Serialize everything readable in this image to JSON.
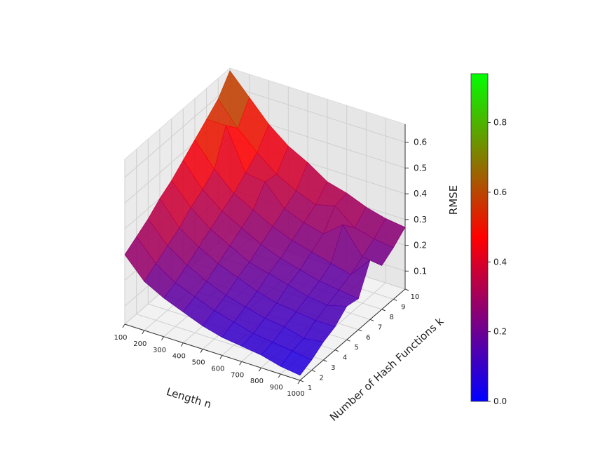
{
  "chart_data": {
    "type": "surface3d",
    "xlabel": "Length n",
    "ylabel": "Number of Hash Functions k",
    "zlabel": "RMSE",
    "x": [
      100,
      200,
      300,
      400,
      500,
      600,
      700,
      800,
      900,
      1000
    ],
    "y": [
      1,
      2,
      3,
      4,
      5,
      6,
      7,
      8,
      9,
      10
    ],
    "z": [
      [
        0.3,
        0.22,
        0.18,
        0.15,
        0.12,
        0.1,
        0.09,
        0.08,
        0.06,
        0.05
      ],
      [
        0.33,
        0.25,
        0.2,
        0.17,
        0.14,
        0.12,
        0.1,
        0.09,
        0.08,
        0.07
      ],
      [
        0.36,
        0.28,
        0.23,
        0.19,
        0.16,
        0.14,
        0.12,
        0.11,
        0.09,
        0.1
      ],
      [
        0.4,
        0.31,
        0.26,
        0.22,
        0.19,
        0.16,
        0.14,
        0.13,
        0.12,
        0.12
      ],
      [
        0.43,
        0.35,
        0.29,
        0.25,
        0.21,
        0.19,
        0.17,
        0.15,
        0.14,
        0.16
      ],
      [
        0.47,
        0.38,
        0.32,
        0.28,
        0.24,
        0.21,
        0.19,
        0.17,
        0.16,
        0.15
      ],
      [
        0.51,
        0.42,
        0.35,
        0.31,
        0.27,
        0.24,
        0.22,
        0.2,
        0.18,
        0.26
      ],
      [
        0.55,
        0.55,
        0.39,
        0.38,
        0.3,
        0.27,
        0.25,
        0.31,
        0.21,
        0.2
      ],
      [
        0.59,
        0.5,
        0.43,
        0.37,
        0.33,
        0.3,
        0.32,
        0.26,
        0.24,
        0.23
      ],
      [
        0.66,
        0.58,
        0.5,
        0.44,
        0.4,
        0.35,
        0.33,
        0.3,
        0.28,
        0.27
      ]
    ],
    "xlim": [
      100,
      1000
    ],
    "ylim": [
      1,
      10
    ],
    "zlim": [
      0.03,
      0.67
    ],
    "xticks": [
      100,
      200,
      300,
      400,
      500,
      600,
      700,
      800,
      900,
      1000
    ],
    "yticks": [
      1,
      2,
      3,
      4,
      5,
      6,
      7,
      8,
      9,
      10
    ],
    "zticks": [
      0.1,
      0.2,
      0.3,
      0.4,
      0.5,
      0.6
    ],
    "colormap": "brg",
    "clim": [
      0,
      0.94
    ],
    "cticks": [
      {
        "value": 0,
        "label": "0.0"
      },
      0.2,
      0.4,
      0.6,
      0.8
    ],
    "grid": true
  }
}
